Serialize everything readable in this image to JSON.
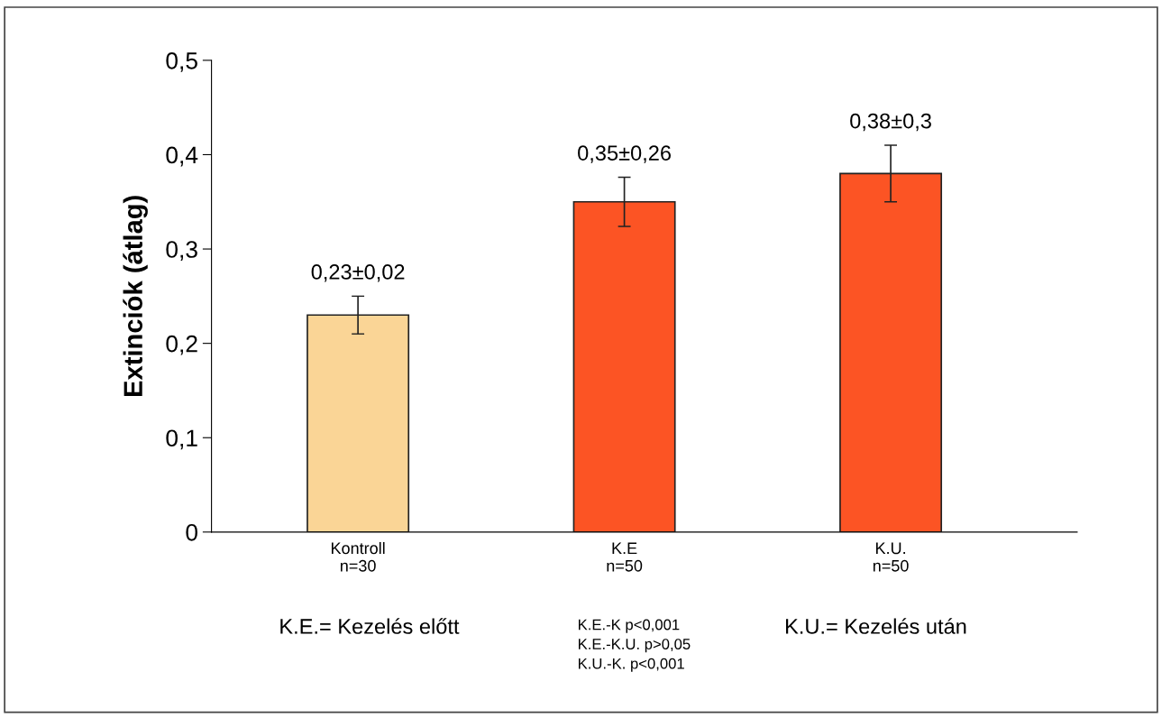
{
  "chart_data": {
    "type": "bar",
    "ylabel": "Extinciók (átlag)",
    "categories": [
      "Kontroll\nn=30",
      "K.E\nn=50",
      "K.U.\nn=50"
    ],
    "values": [
      0.23,
      0.35,
      0.38
    ],
    "colors": [
      "#fad596",
      "#fc5424",
      "#fc5424"
    ],
    "errors": [
      0.02,
      0.026,
      0.03
    ],
    "value_labels": [
      "0,23±0,02",
      "0,35±0,26",
      "0,38±0,3"
    ],
    "ylim": [
      0,
      0.5
    ],
    "yticks": [
      0,
      {
        "value": 0.1,
        "label": "0,1"
      },
      {
        "value": 0.2,
        "label": "0,2"
      },
      {
        "value": 0.3,
        "label": "0,3"
      },
      {
        "value": 0.4,
        "label": "0,4"
      },
      {
        "value": 0.5,
        "label": "0,5"
      }
    ],
    "grid": false,
    "legend": false,
    "annotations": [
      "K.E.= Kezelés előtt",
      "K.E.-K p<0,001\nK.E.-K.U. p>0,05\nK.U.-K. p<0,001",
      "K.U.= Kezelés után"
    ]
  }
}
